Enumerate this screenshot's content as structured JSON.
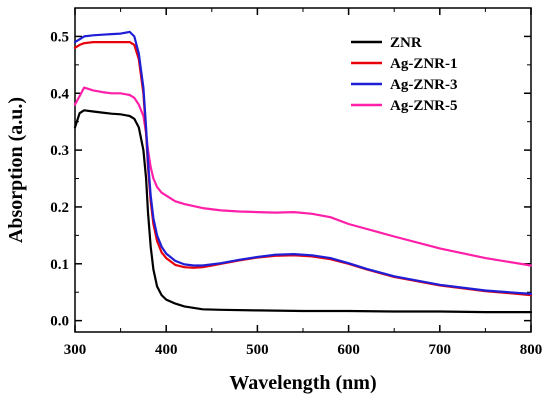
{
  "chart_data": {
    "type": "line",
    "title": "",
    "xlabel": "Wavelength (nm)",
    "ylabel": "Absorption (a.u.)",
    "xlim": [
      300,
      800
    ],
    "ylim": [
      -0.02,
      0.55
    ],
    "x_ticks": [
      300,
      400,
      500,
      600,
      700,
      800
    ],
    "y_ticks": [
      0.0,
      0.1,
      0.2,
      0.3,
      0.4,
      0.5
    ],
    "y_tick_labels": [
      "0.0",
      "0.1",
      "0.2",
      "0.3",
      "0.4",
      "0.5"
    ],
    "grid": false,
    "legend_position": "top-right",
    "series": [
      {
        "name": "ZNR",
        "color": "#000000",
        "x": [
          300,
          305,
          310,
          320,
          330,
          340,
          350,
          360,
          365,
          370,
          375,
          378,
          380,
          383,
          386,
          390,
          395,
          400,
          410,
          420,
          440,
          460,
          500,
          550,
          600,
          650,
          700,
          750,
          800
        ],
        "y": [
          0.34,
          0.365,
          0.37,
          0.368,
          0.366,
          0.364,
          0.363,
          0.36,
          0.355,
          0.34,
          0.3,
          0.25,
          0.19,
          0.13,
          0.09,
          0.06,
          0.045,
          0.037,
          0.03,
          0.025,
          0.02,
          0.019,
          0.018,
          0.017,
          0.017,
          0.016,
          0.016,
          0.015,
          0.015
        ]
      },
      {
        "name": "Ag-ZNR-1",
        "color": "#e8000b",
        "x": [
          300,
          305,
          310,
          320,
          330,
          340,
          350,
          360,
          365,
          370,
          375,
          378,
          380,
          383,
          386,
          390,
          395,
          400,
          410,
          420,
          430,
          440,
          450,
          460,
          480,
          500,
          520,
          540,
          560,
          580,
          600,
          620,
          650,
          700,
          750,
          800
        ],
        "y": [
          0.48,
          0.485,
          0.488,
          0.49,
          0.49,
          0.49,
          0.49,
          0.49,
          0.485,
          0.46,
          0.4,
          0.33,
          0.27,
          0.21,
          0.17,
          0.14,
          0.12,
          0.11,
          0.098,
          0.094,
          0.093,
          0.094,
          0.097,
          0.1,
          0.106,
          0.111,
          0.114,
          0.115,
          0.113,
          0.108,
          0.1,
          0.09,
          0.077,
          0.062,
          0.052,
          0.045
        ]
      },
      {
        "name": "Ag-ZNR-3",
        "color": "#1f1fd6",
        "x": [
          300,
          305,
          310,
          320,
          330,
          340,
          350,
          360,
          365,
          370,
          375,
          378,
          380,
          383,
          386,
          390,
          395,
          400,
          410,
          420,
          430,
          440,
          450,
          460,
          480,
          500,
          520,
          540,
          560,
          580,
          600,
          620,
          650,
          700,
          750,
          800
        ],
        "y": [
          0.49,
          0.495,
          0.5,
          0.502,
          0.503,
          0.504,
          0.505,
          0.508,
          0.5,
          0.47,
          0.41,
          0.34,
          0.28,
          0.22,
          0.18,
          0.15,
          0.13,
          0.118,
          0.105,
          0.099,
          0.097,
          0.097,
          0.099,
          0.101,
          0.107,
          0.112,
          0.116,
          0.117,
          0.115,
          0.11,
          0.101,
          0.091,
          0.078,
          0.063,
          0.053,
          0.047
        ]
      },
      {
        "name": "Ag-ZNR-5",
        "color": "#ff1fa8",
        "x": [
          300,
          305,
          310,
          320,
          330,
          340,
          350,
          360,
          365,
          370,
          375,
          378,
          380,
          383,
          386,
          390,
          395,
          400,
          410,
          420,
          440,
          460,
          480,
          500,
          520,
          540,
          560,
          580,
          600,
          650,
          700,
          750,
          800
        ],
        "y": [
          0.38,
          0.395,
          0.41,
          0.405,
          0.402,
          0.4,
          0.4,
          0.397,
          0.392,
          0.38,
          0.36,
          0.33,
          0.3,
          0.27,
          0.25,
          0.235,
          0.225,
          0.22,
          0.21,
          0.205,
          0.198,
          0.194,
          0.192,
          0.191,
          0.19,
          0.191,
          0.188,
          0.182,
          0.17,
          0.148,
          0.127,
          0.11,
          0.097
        ]
      }
    ]
  }
}
